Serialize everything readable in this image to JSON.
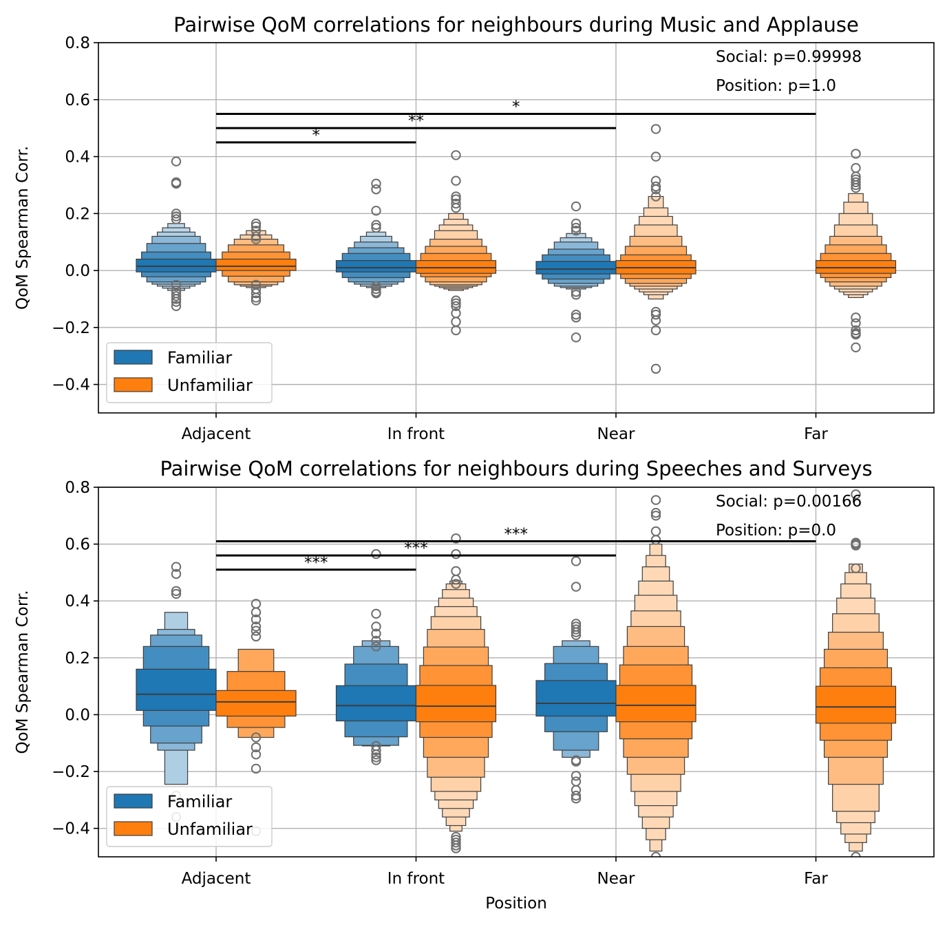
{
  "chart_data": [
    {
      "type": "boxen",
      "title": "Pairwise QoM correlations for neighbours during Music and Applause",
      "xlabel": "",
      "ylabel": "QoM Spearman Corr.",
      "ylim": [
        -0.5,
        0.8
      ],
      "yticks": [
        -0.4,
        -0.2,
        0.0,
        0.2,
        0.4,
        0.6,
        0.8
      ],
      "yticklabels": [
        "−0.4",
        "−0.2",
        "0.0",
        "0.2",
        "0.4",
        "0.6",
        "0.8"
      ],
      "categories": [
        "Adjacent",
        "In front",
        "Near",
        "Far"
      ],
      "grid": true,
      "legend": {
        "placement": "lower-left",
        "entries": [
          "Familiar",
          "Unfamiliar"
        ]
      },
      "stats_text": [
        "Social: p=0.99998",
        "Position: p=1.0"
      ],
      "significance": [
        {
          "from": "Adjacent",
          "to": "In front",
          "y": 0.45,
          "label": "*"
        },
        {
          "from": "Adjacent",
          "to": "Near",
          "y": 0.5,
          "label": "**"
        },
        {
          "from": "Adjacent",
          "to": "Far",
          "y": 0.55,
          "label": "*"
        }
      ],
      "series": [
        {
          "name": "Familiar",
          "color": "#1f77b4",
          "boxes": [
            {
              "category": "Adjacent",
              "median": 0.015,
              "levels": [
                [
                  -0.005,
                  0.04
                ],
                [
                  -0.022,
                  0.065
                ],
                [
                  -0.04,
                  0.095
                ],
                [
                  -0.048,
                  0.12
                ],
                [
                  -0.055,
                  0.135
                ],
                [
                  -0.062,
                  0.15
                ],
                [
                  -0.07,
                  0.165
                ]
              ],
              "outliers": [
                0.383,
                0.31,
                0.305,
                0.2,
                0.19,
                0.18,
                -0.05,
                -0.07,
                -0.08,
                -0.09,
                -0.1,
                -0.11,
                -0.125
              ]
            },
            {
              "category": "In front",
              "median": 0.01,
              "levels": [
                [
                  -0.005,
                  0.035
                ],
                [
                  -0.025,
                  0.06
                ],
                [
                  -0.04,
                  0.08
                ],
                [
                  -0.048,
                  0.1
                ],
                [
                  -0.055,
                  0.12
                ],
                [
                  -0.06,
                  0.135
                ]
              ],
              "outliers": [
                0.305,
                0.285,
                0.21,
                0.16,
                0.15,
                -0.055,
                -0.065,
                -0.075,
                -0.08
              ]
            },
            {
              "category": "Near",
              "median": 0.005,
              "levels": [
                [
                  -0.012,
                  0.032
                ],
                [
                  -0.03,
                  0.055
                ],
                [
                  -0.045,
                  0.075
                ],
                [
                  -0.055,
                  0.1
                ],
                [
                  -0.06,
                  0.115
                ],
                [
                  -0.065,
                  0.13
                ]
              ],
              "outliers": [
                0.225,
                0.165,
                0.15,
                0.14,
                -0.075,
                -0.085,
                -0.155,
                -0.165,
                -0.235
              ]
            }
          ]
        },
        {
          "name": "Unfamiliar",
          "color": "#ff7f0e",
          "boxes": [
            {
              "category": "Adjacent",
              "median": 0.015,
              "levels": [
                [
                  0.0,
                  0.04
                ],
                [
                  -0.02,
                  0.065
                ],
                [
                  -0.04,
                  0.09
                ],
                [
                  -0.05,
                  0.11
                ],
                [
                  -0.055,
                  0.125
                ],
                [
                  -0.06,
                  0.14
                ]
              ],
              "outliers": [
                0.165,
                0.155,
                0.14,
                0.12,
                0.11,
                -0.05,
                -0.065,
                -0.08,
                -0.095,
                -0.105
              ]
            },
            {
              "category": "In front",
              "median": 0.01,
              "levels": [
                [
                  -0.01,
                  0.035
                ],
                [
                  -0.022,
                  0.06
                ],
                [
                  -0.04,
                  0.085
                ],
                [
                  -0.05,
                  0.11
                ],
                [
                  -0.055,
                  0.14
                ],
                [
                  -0.06,
                  0.16
                ],
                [
                  -0.065,
                  0.18
                ],
                [
                  -0.07,
                  0.2
                ]
              ],
              "outliers": [
                0.405,
                0.315,
                0.26,
                0.25,
                0.235,
                0.22,
                -0.105,
                -0.115,
                -0.125,
                -0.15,
                -0.18,
                -0.21
              ]
            },
            {
              "category": "Near",
              "median": 0.01,
              "levels": [
                [
                  -0.012,
                  0.035
                ],
                [
                  -0.028,
                  0.055
                ],
                [
                  -0.045,
                  0.085
                ],
                [
                  -0.055,
                  0.12
                ],
                [
                  -0.065,
                  0.16
                ],
                [
                  -0.075,
                  0.19
                ],
                [
                  -0.085,
                  0.22
                ],
                [
                  -0.1,
                  0.26
                ]
              ],
              "outliers": [
                0.497,
                0.4,
                0.315,
                0.295,
                0.285,
                0.26,
                -0.145,
                -0.155,
                -0.175,
                -0.21,
                -0.345
              ]
            },
            {
              "category": "Far",
              "median": 0.01,
              "levels": [
                [
                  -0.01,
                  0.035
                ],
                [
                  -0.025,
                  0.06
                ],
                [
                  -0.04,
                  0.09
                ],
                [
                  -0.055,
                  0.12
                ],
                [
                  -0.065,
                  0.16
                ],
                [
                  -0.075,
                  0.2
                ],
                [
                  -0.085,
                  0.24
                ],
                [
                  -0.095,
                  0.27
                ]
              ],
              "outliers": [
                0.41,
                0.36,
                0.33,
                0.32,
                0.31,
                0.3,
                0.29,
                -0.165,
                -0.185,
                -0.21,
                -0.22,
                -0.225,
                -0.27
              ]
            }
          ]
        }
      ]
    },
    {
      "type": "boxen",
      "title": "Pairwise QoM correlations for neighbours during Speeches and Surveys",
      "xlabel": "Position",
      "ylabel": "QoM Spearman Corr.",
      "ylim": [
        -0.5,
        0.8
      ],
      "yticks": [
        -0.4,
        -0.2,
        0.0,
        0.2,
        0.4,
        0.6,
        0.8
      ],
      "yticklabels": [
        "−0.4",
        "−0.2",
        "0.0",
        "0.2",
        "0.4",
        "0.6",
        "0.8"
      ],
      "categories": [
        "Adjacent",
        "In front",
        "Near",
        "Far"
      ],
      "grid": true,
      "legend": {
        "placement": "lower-left",
        "entries": [
          "Familiar",
          "Unfamiliar"
        ]
      },
      "stats_text": [
        "Social: p=0.00166",
        "Position: p=0.0"
      ],
      "significance": [
        {
          "from": "Adjacent",
          "to": "In front",
          "y": 0.51,
          "label": "***"
        },
        {
          "from": "Adjacent",
          "to": "Near",
          "y": 0.56,
          "label": "***"
        },
        {
          "from": "Adjacent",
          "to": "Far",
          "y": 0.61,
          "label": "***"
        }
      ],
      "series": [
        {
          "name": "Familiar",
          "color": "#1f77b4",
          "boxes": [
            {
              "category": "Adjacent",
              "median": 0.072,
              "levels": [
                [
                  0.015,
                  0.16
                ],
                [
                  -0.04,
                  0.24
                ],
                [
                  -0.1,
                  0.28
                ],
                [
                  -0.125,
                  0.3
                ],
                [
                  -0.245,
                  0.36
                ]
              ],
              "outliers": [
                0.52,
                0.495,
                0.435,
                0.425,
                -0.285,
                -0.36
              ]
            },
            {
              "category": "In front",
              "median": 0.032,
              "levels": [
                [
                  -0.022,
                  0.102
                ],
                [
                  -0.078,
                  0.178
                ],
                [
                  -0.108,
                  0.24
                ],
                [
                  -0.11,
                  0.26
                ]
              ],
              "outliers": [
                0.565,
                0.355,
                0.31,
                0.285,
                0.26,
                0.24,
                -0.11,
                -0.125,
                -0.14,
                -0.15,
                -0.16
              ]
            },
            {
              "category": "Near",
              "median": 0.04,
              "levels": [
                [
                  -0.005,
                  0.12
                ],
                [
                  -0.06,
                  0.18
                ],
                [
                  -0.125,
                  0.24
                ],
                [
                  -0.15,
                  0.26
                ]
              ],
              "outliers": [
                0.54,
                0.45,
                0.32,
                0.31,
                0.3,
                0.29,
                0.28,
                -0.16,
                -0.165,
                -0.215,
                -0.235,
                -0.265,
                -0.285,
                -0.295
              ]
            }
          ]
        },
        {
          "name": "Unfamiliar",
          "color": "#ff7f0e",
          "boxes": [
            {
              "category": "Adjacent",
              "median": 0.045,
              "levels": [
                [
                  -0.005,
                  0.085
                ],
                [
                  -0.045,
                  0.152
                ],
                [
                  -0.08,
                  0.23
                ]
              ],
              "outliers": [
                0.39,
                0.36,
                0.335,
                0.31,
                0.295,
                0.275,
                -0.08,
                -0.115,
                -0.14,
                -0.19,
                -0.41
              ]
            },
            {
              "category": "In front",
              "median": 0.03,
              "levels": [
                [
                  -0.025,
                  0.103
                ],
                [
                  -0.08,
                  0.173
                ],
                [
                  -0.15,
                  0.238
                ],
                [
                  -0.22,
                  0.3
                ],
                [
                  -0.27,
                  0.345
                ],
                [
                  -0.3,
                  0.38
                ],
                [
                  -0.33,
                  0.41
                ],
                [
                  -0.36,
                  0.44
                ],
                [
                  -0.39,
                  0.46
                ],
                [
                  -0.41,
                  0.47
                ]
              ],
              "outliers": [
                0.62,
                0.565,
                0.505,
                0.475,
                0.46,
                -0.43,
                -0.44,
                -0.45,
                -0.46,
                -0.47
              ]
            },
            {
              "category": "Near",
              "median": 0.033,
              "levels": [
                [
                  -0.025,
                  0.103
                ],
                [
                  -0.085,
                  0.175
                ],
                [
                  -0.15,
                  0.24
                ],
                [
                  -0.21,
                  0.31
                ],
                [
                  -0.27,
                  0.365
                ],
                [
                  -0.32,
                  0.42
                ],
                [
                  -0.36,
                  0.47
                ],
                [
                  -0.4,
                  0.52
                ],
                [
                  -0.44,
                  0.56
                ],
                [
                  -0.48,
                  0.6
                ]
              ],
              "outliers": [
                0.755,
                0.71,
                0.7,
                0.645,
                0.615,
                -0.5
              ]
            },
            {
              "category": "Far",
              "median": 0.027,
              "levels": [
                [
                  -0.03,
                  0.1
                ],
                [
                  -0.09,
                  0.165
                ],
                [
                  -0.15,
                  0.23
                ],
                [
                  -0.245,
                  0.29
                ],
                [
                  -0.34,
                  0.355
                ],
                [
                  -0.38,
                  0.41
                ],
                [
                  -0.42,
                  0.46
                ],
                [
                  -0.45,
                  0.5
                ],
                [
                  -0.48,
                  0.53
                ]
              ],
              "outliers": [
                0.775,
                0.605,
                0.6,
                0.595,
                0.515,
                -0.5
              ]
            }
          ]
        }
      ]
    }
  ]
}
